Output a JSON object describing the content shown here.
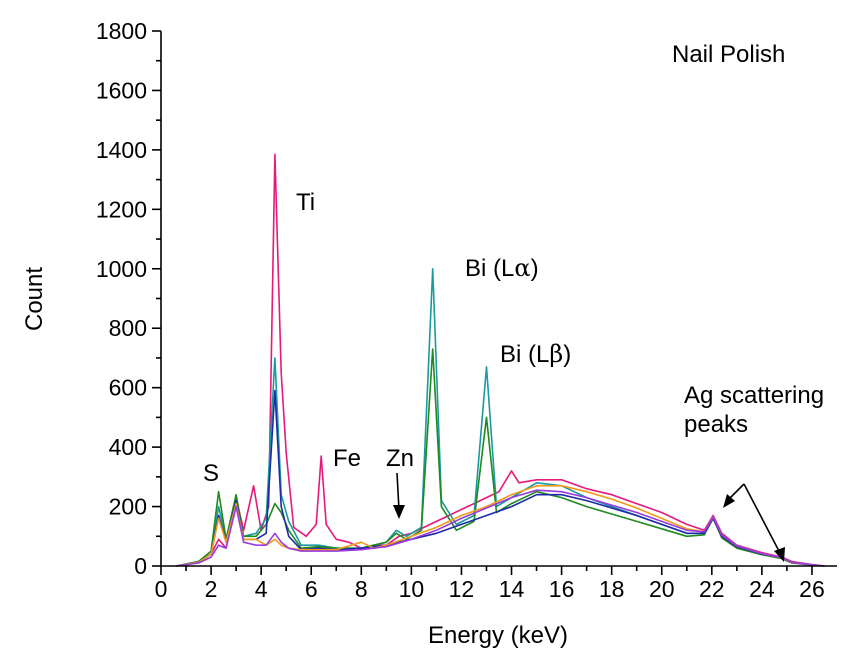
{
  "chart_data": {
    "type": "line",
    "title": "Nail Polish",
    "xlabel": "Energy (keV)",
    "ylabel": "Count",
    "xlim": [
      0,
      27
    ],
    "ylim": [
      0,
      1800
    ],
    "xticks": [
      0,
      2,
      4,
      6,
      8,
      10,
      12,
      14,
      16,
      18,
      20,
      22,
      24,
      26
    ],
    "yticks": [
      0,
      200,
      400,
      600,
      800,
      1000,
      1200,
      1400,
      1600,
      1800
    ],
    "grid": false,
    "legend": "none",
    "annotations": {
      "s": "S",
      "ti": "Ti",
      "fe": "Fe",
      "zn": "Zn",
      "bi_la_prefix": "Bi (L",
      "bi_la_greek": "α",
      "bi_lb_prefix": "Bi (L",
      "bi_lb_greek": "β",
      "close_paren": ")",
      "ag_line1": "Ag scattering",
      "ag_line2": "peaks"
    },
    "series": [
      {
        "color": "#e6197d",
        "points": [
          [
            0.6,
            0
          ],
          [
            1,
            5
          ],
          [
            1.5,
            15
          ],
          [
            2,
            40
          ],
          [
            2.3,
            90
          ],
          [
            2.6,
            60
          ],
          [
            3,
            230
          ],
          [
            3.3,
            120
          ],
          [
            3.7,
            270
          ],
          [
            4,
            120
          ],
          [
            4.3,
            200
          ],
          [
            4.55,
            1385
          ],
          [
            4.8,
            650
          ],
          [
            5.0,
            380
          ],
          [
            5.3,
            130
          ],
          [
            5.8,
            100
          ],
          [
            6.2,
            140
          ],
          [
            6.4,
            370
          ],
          [
            6.6,
            140
          ],
          [
            7,
            90
          ],
          [
            7.5,
            80
          ],
          [
            8,
            60
          ],
          [
            8.5,
            70
          ],
          [
            9,
            70
          ],
          [
            9.5,
            100
          ],
          [
            10,
            110
          ],
          [
            10.5,
            130
          ],
          [
            11,
            150
          ],
          [
            11.5,
            170
          ],
          [
            12,
            190
          ],
          [
            12.5,
            210
          ],
          [
            13,
            230
          ],
          [
            13.5,
            250
          ],
          [
            14,
            320
          ],
          [
            14.3,
            280
          ],
          [
            15,
            290
          ],
          [
            16,
            290
          ],
          [
            17,
            260
          ],
          [
            18,
            240
          ],
          [
            19,
            210
          ],
          [
            20,
            180
          ],
          [
            21,
            140
          ],
          [
            21.7,
            120
          ],
          [
            22.05,
            170
          ],
          [
            22.4,
            110
          ],
          [
            23,
            70
          ],
          [
            24,
            45
          ],
          [
            24.8,
            30
          ],
          [
            25.2,
            15
          ],
          [
            26,
            5
          ],
          [
            26.5,
            0
          ]
        ]
      },
      {
        "color": "#1a9aa0",
        "points": [
          [
            0.6,
            0
          ],
          [
            1.5,
            15
          ],
          [
            2,
            40
          ],
          [
            2.3,
            200
          ],
          [
            2.6,
            90
          ],
          [
            3,
            220
          ],
          [
            3.3,
            100
          ],
          [
            3.8,
            110
          ],
          [
            4.2,
            160
          ],
          [
            4.55,
            700
          ],
          [
            4.8,
            240
          ],
          [
            5.1,
            150
          ],
          [
            5.6,
            70
          ],
          [
            6.3,
            70
          ],
          [
            7,
            60
          ],
          [
            8,
            60
          ],
          [
            9,
            80
          ],
          [
            9.4,
            120
          ],
          [
            9.8,
            100
          ],
          [
            10.4,
            130
          ],
          [
            10.85,
            1000
          ],
          [
            11.2,
            220
          ],
          [
            11.8,
            140
          ],
          [
            12.5,
            170
          ],
          [
            13.0,
            670
          ],
          [
            13.4,
            200
          ],
          [
            14,
            230
          ],
          [
            15,
            280
          ],
          [
            16,
            270
          ],
          [
            17,
            230
          ],
          [
            18,
            200
          ],
          [
            19,
            170
          ],
          [
            20,
            140
          ],
          [
            21,
            110
          ],
          [
            21.7,
            110
          ],
          [
            22.05,
            165
          ],
          [
            22.4,
            100
          ],
          [
            23,
            65
          ],
          [
            24,
            40
          ],
          [
            24.8,
            28
          ],
          [
            25.2,
            12
          ],
          [
            26,
            4
          ],
          [
            26.5,
            0
          ]
        ]
      },
      {
        "color": "#1f8a1f",
        "points": [
          [
            0.6,
            0
          ],
          [
            1.5,
            15
          ],
          [
            2,
            50
          ],
          [
            2.3,
            250
          ],
          [
            2.6,
            90
          ],
          [
            3,
            240
          ],
          [
            3.3,
            100
          ],
          [
            3.8,
            100
          ],
          [
            4.2,
            140
          ],
          [
            4.55,
            210
          ],
          [
            4.8,
            180
          ],
          [
            5.1,
            120
          ],
          [
            5.6,
            60
          ],
          [
            6.3,
            65
          ],
          [
            7,
            60
          ],
          [
            8,
            60
          ],
          [
            9,
            80
          ],
          [
            9.4,
            110
          ],
          [
            9.8,
            90
          ],
          [
            10.4,
            120
          ],
          [
            10.85,
            730
          ],
          [
            11.2,
            200
          ],
          [
            11.8,
            120
          ],
          [
            12.5,
            150
          ],
          [
            13.0,
            500
          ],
          [
            13.4,
            180
          ],
          [
            14,
            210
          ],
          [
            15,
            250
          ],
          [
            16,
            230
          ],
          [
            17,
            200
          ],
          [
            18,
            175
          ],
          [
            19,
            150
          ],
          [
            20,
            125
          ],
          [
            21,
            100
          ],
          [
            21.7,
            105
          ],
          [
            22.05,
            160
          ],
          [
            22.4,
            95
          ],
          [
            23,
            60
          ],
          [
            24,
            38
          ],
          [
            24.8,
            25
          ],
          [
            25.2,
            10
          ],
          [
            26,
            3
          ],
          [
            26.5,
            0
          ]
        ]
      },
      {
        "color": "#1f2aa8",
        "points": [
          [
            0.6,
            0
          ],
          [
            1.5,
            12
          ],
          [
            2,
            40
          ],
          [
            2.3,
            170
          ],
          [
            2.6,
            80
          ],
          [
            3,
            220
          ],
          [
            3.3,
            90
          ],
          [
            3.8,
            90
          ],
          [
            4.2,
            110
          ],
          [
            4.55,
            590
          ],
          [
            4.8,
            200
          ],
          [
            5.1,
            100
          ],
          [
            5.6,
            55
          ],
          [
            6.3,
            60
          ],
          [
            7,
            55
          ],
          [
            8,
            60
          ],
          [
            9,
            70
          ],
          [
            10,
            90
          ],
          [
            11,
            110
          ],
          [
            12,
            140
          ],
          [
            13,
            170
          ],
          [
            14,
            200
          ],
          [
            15,
            240
          ],
          [
            16,
            240
          ],
          [
            17,
            220
          ],
          [
            18,
            195
          ],
          [
            19,
            170
          ],
          [
            20,
            140
          ],
          [
            21,
            110
          ],
          [
            21.7,
            110
          ],
          [
            22.05,
            160
          ],
          [
            22.4,
            100
          ],
          [
            23,
            65
          ],
          [
            24,
            40
          ],
          [
            24.8,
            28
          ],
          [
            25.2,
            12
          ],
          [
            26,
            4
          ],
          [
            26.5,
            0
          ]
        ]
      },
      {
        "color": "#f29a1a",
        "points": [
          [
            0.6,
            0
          ],
          [
            1.5,
            12
          ],
          [
            2,
            40
          ],
          [
            2.3,
            160
          ],
          [
            2.6,
            80
          ],
          [
            3,
            210
          ],
          [
            3.3,
            90
          ],
          [
            3.8,
            90
          ],
          [
            4.2,
            70
          ],
          [
            4.55,
            90
          ],
          [
            4.8,
            70
          ],
          [
            5.1,
            60
          ],
          [
            5.6,
            55
          ],
          [
            6.3,
            55
          ],
          [
            7,
            55
          ],
          [
            8,
            80
          ],
          [
            8.5,
            60
          ],
          [
            9,
            70
          ],
          [
            10,
            100
          ],
          [
            11,
            130
          ],
          [
            12,
            170
          ],
          [
            13,
            200
          ],
          [
            14,
            240
          ],
          [
            15,
            270
          ],
          [
            16,
            270
          ],
          [
            17,
            250
          ],
          [
            18,
            225
          ],
          [
            19,
            195
          ],
          [
            20,
            160
          ],
          [
            21,
            125
          ],
          [
            21.7,
            115
          ],
          [
            22.05,
            165
          ],
          [
            22.4,
            105
          ],
          [
            23,
            68
          ],
          [
            24,
            42
          ],
          [
            24.8,
            28
          ],
          [
            25.2,
            12
          ],
          [
            26,
            4
          ],
          [
            26.5,
            0
          ]
        ]
      },
      {
        "color": "#9a3ae0",
        "points": [
          [
            0.6,
            0
          ],
          [
            1.5,
            10
          ],
          [
            2,
            30
          ],
          [
            2.3,
            70
          ],
          [
            2.6,
            60
          ],
          [
            3,
            200
          ],
          [
            3.3,
            80
          ],
          [
            3.8,
            70
          ],
          [
            4.2,
            70
          ],
          [
            4.55,
            110
          ],
          [
            4.8,
            80
          ],
          [
            5.1,
            60
          ],
          [
            5.6,
            50
          ],
          [
            6.3,
            50
          ],
          [
            7,
            50
          ],
          [
            8,
            55
          ],
          [
            9,
            65
          ],
          [
            10,
            90
          ],
          [
            11,
            120
          ],
          [
            12,
            160
          ],
          [
            13,
            195
          ],
          [
            14,
            230
          ],
          [
            15,
            255
          ],
          [
            16,
            250
          ],
          [
            17,
            230
          ],
          [
            18,
            205
          ],
          [
            19,
            180
          ],
          [
            20,
            150
          ],
          [
            21,
            120
          ],
          [
            21.7,
            115
          ],
          [
            22.05,
            165
          ],
          [
            22.4,
            105
          ],
          [
            23,
            68
          ],
          [
            24,
            42
          ],
          [
            24.8,
            28
          ],
          [
            25.2,
            12
          ],
          [
            26,
            4
          ],
          [
            26.5,
            0
          ]
        ]
      }
    ]
  }
}
